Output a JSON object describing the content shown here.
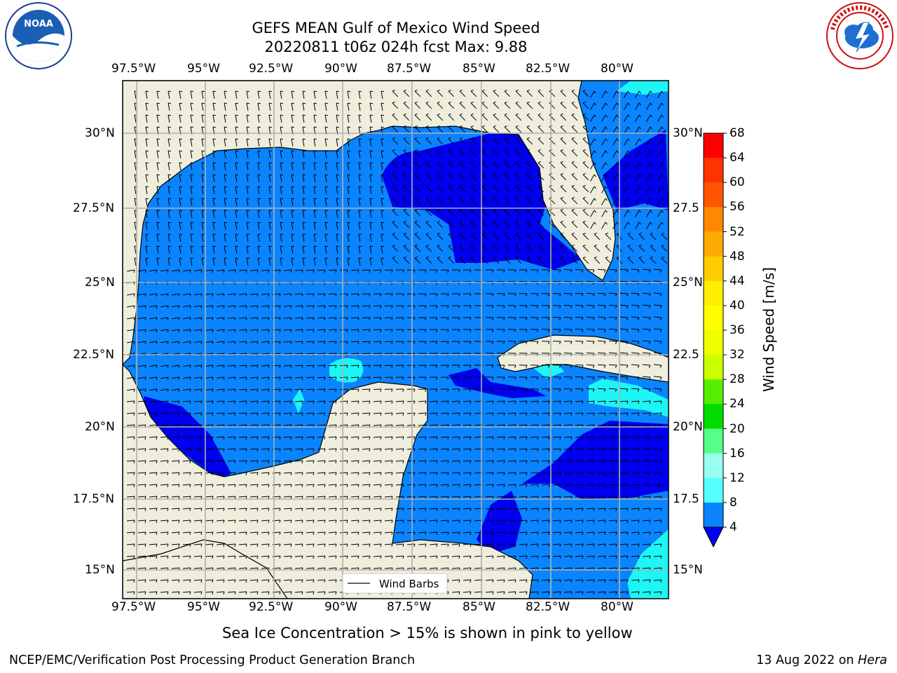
{
  "title_line1": "GEFS MEAN Gulf of Mexico Wind Speed",
  "title_line2": "20220811 t06z 024h fcst   Max: 9.88",
  "lon_labels": [
    "97.5°W",
    "95°W",
    "92.5°W",
    "90°W",
    "87.5°W",
    "85°W",
    "82.5°W",
    "80°W"
  ],
  "lat_labels_left": [
    "30°N",
    "27.5°N",
    "25°N",
    "22.5°N",
    "20°N",
    "17.5°N",
    "15°N"
  ],
  "lat_labels_right": [
    "30°N",
    "27.5",
    "25°N",
    "22.5",
    "20°N",
    "17.5",
    "15°N"
  ],
  "legend_label": "Wind Barbs",
  "colorbar": {
    "label": "Wind Speed [m/s]",
    "ticks": [
      "68",
      "64",
      "60",
      "56",
      "52",
      "48",
      "44",
      "40",
      "36",
      "32",
      "28",
      "24",
      "20",
      "16",
      "12",
      "8",
      "4"
    ],
    "colors": [
      "#ff0000",
      "#ff3300",
      "#ff6600",
      "#ff8800",
      "#ffaa00",
      "#ffcc00",
      "#ffee00",
      "#ffff00",
      "#eeff00",
      "#ccff00",
      "#99ff00",
      "#55ee00",
      "#00dd00",
      "#00ee55",
      "#55ff88",
      "#99ffdd",
      "#55ffff",
      "#00ffff",
      "#0077ff",
      "#0000ee"
    ]
  },
  "sea_ice_note": "Sea Ice Concentration > 15% is shown in pink to yellow",
  "footer_left": "NCEP/EMC/Verification Post Processing Product Generation Branch",
  "footer_date": "13 Aug 2022 on ",
  "footer_host": "Hera",
  "logos": {
    "noaa_text": "NOAA",
    "noaa_ring": "NATIONAL OCEANIC AND ATMOSPHERIC ADMINISTRATION · U.S. DEPARTMENT OF COMMERCE",
    "nws_ring": "NATIONAL WEATHER SERVICE"
  },
  "colors": {
    "land": "#efeedc",
    "wind_4_8": "#0a84ff",
    "wind_lt4": "#0000ee",
    "wind_8_12": "#1ef5f5",
    "grid": "#b0b0b0"
  }
}
